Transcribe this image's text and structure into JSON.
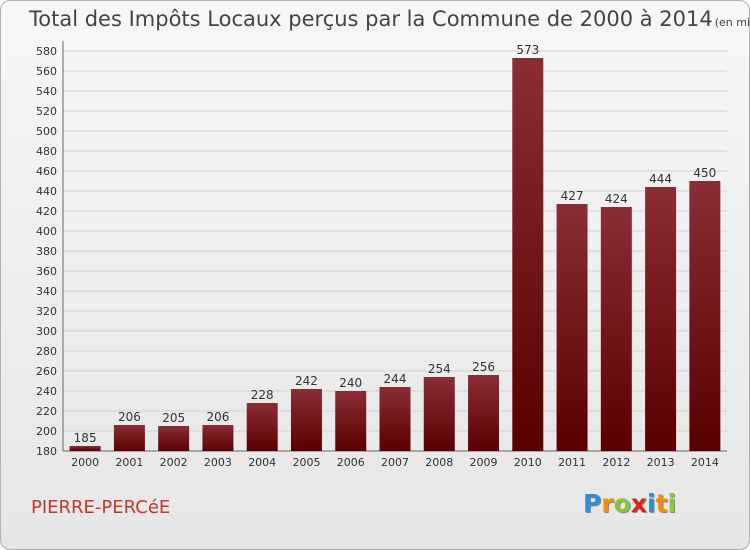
{
  "header": {
    "title": "Total des Impôts Locaux perçus par la Commune de 2000 à 2014",
    "unit": "(en milliers d'€)"
  },
  "footer": {
    "commune": "PIERRE-PERCéE",
    "logo": {
      "letters": [
        "P",
        "r",
        "o",
        "x",
        "i",
        "t",
        "i"
      ],
      "colors": [
        "#2e8fd6",
        "#f29100",
        "#8cc63f",
        "#e2211c",
        "#2e8fd6",
        "#f29100",
        "#8cc63f"
      ]
    }
  },
  "chart_data": {
    "type": "bar",
    "categories": [
      "2000",
      "2001",
      "2002",
      "2003",
      "2004",
      "2005",
      "2006",
      "2007",
      "2008",
      "2009",
      "2010",
      "2011",
      "2012",
      "2013",
      "2014"
    ],
    "values": [
      185,
      206,
      205,
      206,
      228,
      242,
      240,
      244,
      254,
      256,
      573,
      427,
      424,
      444,
      450
    ],
    "ylim": [
      180,
      590
    ],
    "yticks": [
      180,
      200,
      220,
      240,
      260,
      280,
      300,
      320,
      340,
      360,
      380,
      400,
      420,
      440,
      460,
      480,
      500,
      520,
      540,
      560,
      580
    ],
    "grid": true,
    "bar_color_top": "#8b2d35",
    "bar_color_bottom": "#5a0000",
    "xlabel": "",
    "ylabel": ""
  }
}
